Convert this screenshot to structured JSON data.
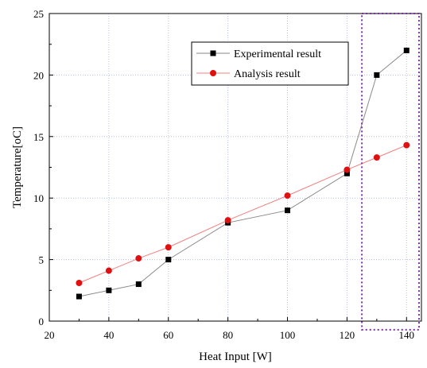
{
  "chart_data": {
    "type": "line",
    "xlabel": "Heat Input [W]",
    "ylabel": "Temperature[oC]",
    "xlim": [
      20,
      145
    ],
    "ylim": [
      0,
      25
    ],
    "xticks": [
      20,
      40,
      60,
      80,
      100,
      120,
      140
    ],
    "yticks": [
      0,
      5,
      10,
      15,
      20,
      25
    ],
    "grid": true,
    "legend_position": "top-right",
    "highlight_box": {
      "x_range": [
        125,
        145
      ],
      "y_range": [
        -0.7,
        25
      ],
      "color": "#7b2fa6",
      "style": "dotted"
    },
    "series": [
      {
        "name": "Experimental result",
        "marker": "square",
        "marker_color": "#000000",
        "line_color": "#8a8a8a",
        "x": [
          30,
          40,
          50,
          60,
          80,
          100,
          120,
          130,
          140
        ],
        "y": [
          2,
          2.5,
          3,
          5,
          8,
          9,
          12,
          20,
          22
        ]
      },
      {
        "name": "Analysis result",
        "marker": "circle",
        "marker_color": "#e01010",
        "line_color": "#f08080",
        "x": [
          30,
          40,
          50,
          60,
          80,
          100,
          120,
          130,
          140
        ],
        "y": [
          3.1,
          4.1,
          5.1,
          6,
          8.2,
          10.2,
          12.3,
          13.3,
          14.3
        ]
      }
    ]
  }
}
